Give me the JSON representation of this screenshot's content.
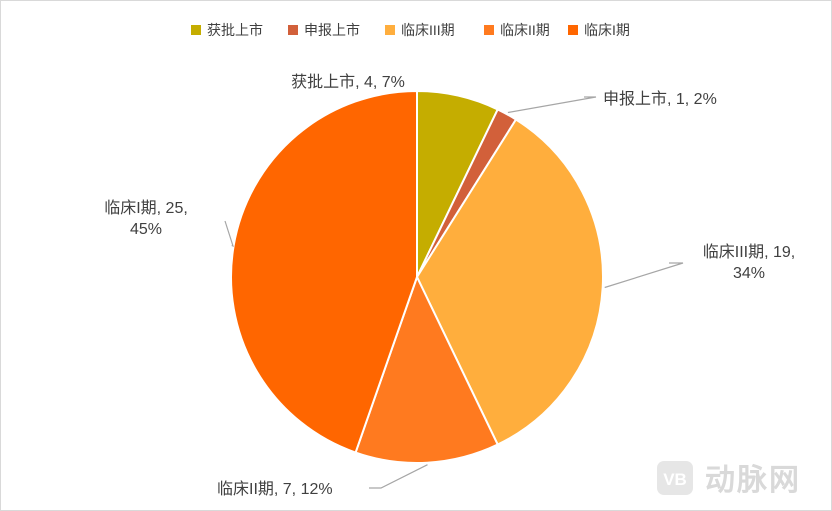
{
  "chart_data": {
    "type": "pie",
    "categories": [
      "获批上市",
      "申报上市",
      "临床III期",
      "临床II期",
      "临床I期"
    ],
    "values": [
      4,
      1,
      19,
      7,
      25
    ],
    "percents": [
      "7%",
      "2%",
      "34%",
      "12%",
      "45%"
    ],
    "colors": [
      "#c5ad00",
      "#d2603a",
      "#ffae3d",
      "#ff7a1f",
      "#ff6600"
    ],
    "data_labels": [
      [
        "获批上市, 4, 7%"
      ],
      [
        "申报上市, 1, 2%"
      ],
      [
        "临床III期, 19,",
        "34%"
      ],
      [
        "临床II期, 7, 12%"
      ],
      [
        "临床I期, 25,",
        "45%"
      ]
    ],
    "legend_position": "top"
  },
  "watermark": {
    "icon": "vb-logo-icon",
    "text": "动脉网"
  }
}
